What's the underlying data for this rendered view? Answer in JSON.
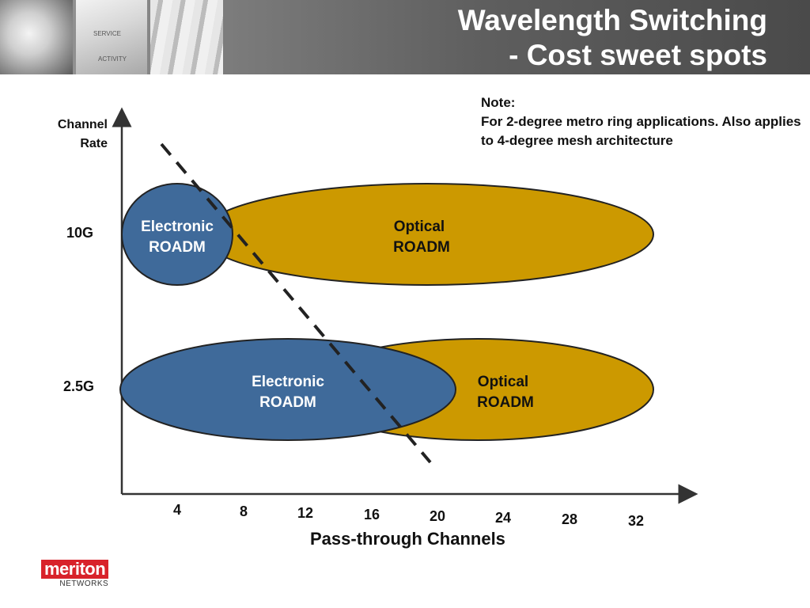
{
  "title": {
    "line1": "Wavelength Switching",
    "line2": "- Cost sweet spots"
  },
  "header_photo": {
    "label1": "SERVICE",
    "label2": "ACTIVITY"
  },
  "note": {
    "heading": "Note:",
    "body": "For 2-degree metro ring applications. Also applies to 4-degree mesh architecture"
  },
  "y_axis": {
    "label_line1": "Channel",
    "label_line2": "Rate",
    "ticks": [
      "10G",
      "2.5G"
    ]
  },
  "x_axis": {
    "label": "Pass-through Channels",
    "ticks": [
      "4",
      "8",
      "12",
      "16",
      "20",
      "24",
      "28",
      "32"
    ]
  },
  "regions": [
    {
      "label_line1": "Optical",
      "label_line2": "ROADM",
      "rate": "10G",
      "color": "#cc9900"
    },
    {
      "label_line1": "Electronic",
      "label_line2": "ROADM",
      "rate": "10G",
      "color": "#3f6a9a"
    },
    {
      "label_line1": "Optical",
      "label_line2": "ROADM",
      "rate": "2.5G",
      "color": "#cc9900"
    },
    {
      "label_line1": "Electronic",
      "label_line2": "ROADM",
      "rate": "2.5G",
      "color": "#3f6a9a"
    }
  ],
  "logo": {
    "main": "meriton",
    "sub": "NETWORKS",
    "color": "#d8222a"
  },
  "colors": {
    "header_dark": "#4a4a4a",
    "optical": "#cc9900",
    "electronic": "#3f6a9a"
  }
}
